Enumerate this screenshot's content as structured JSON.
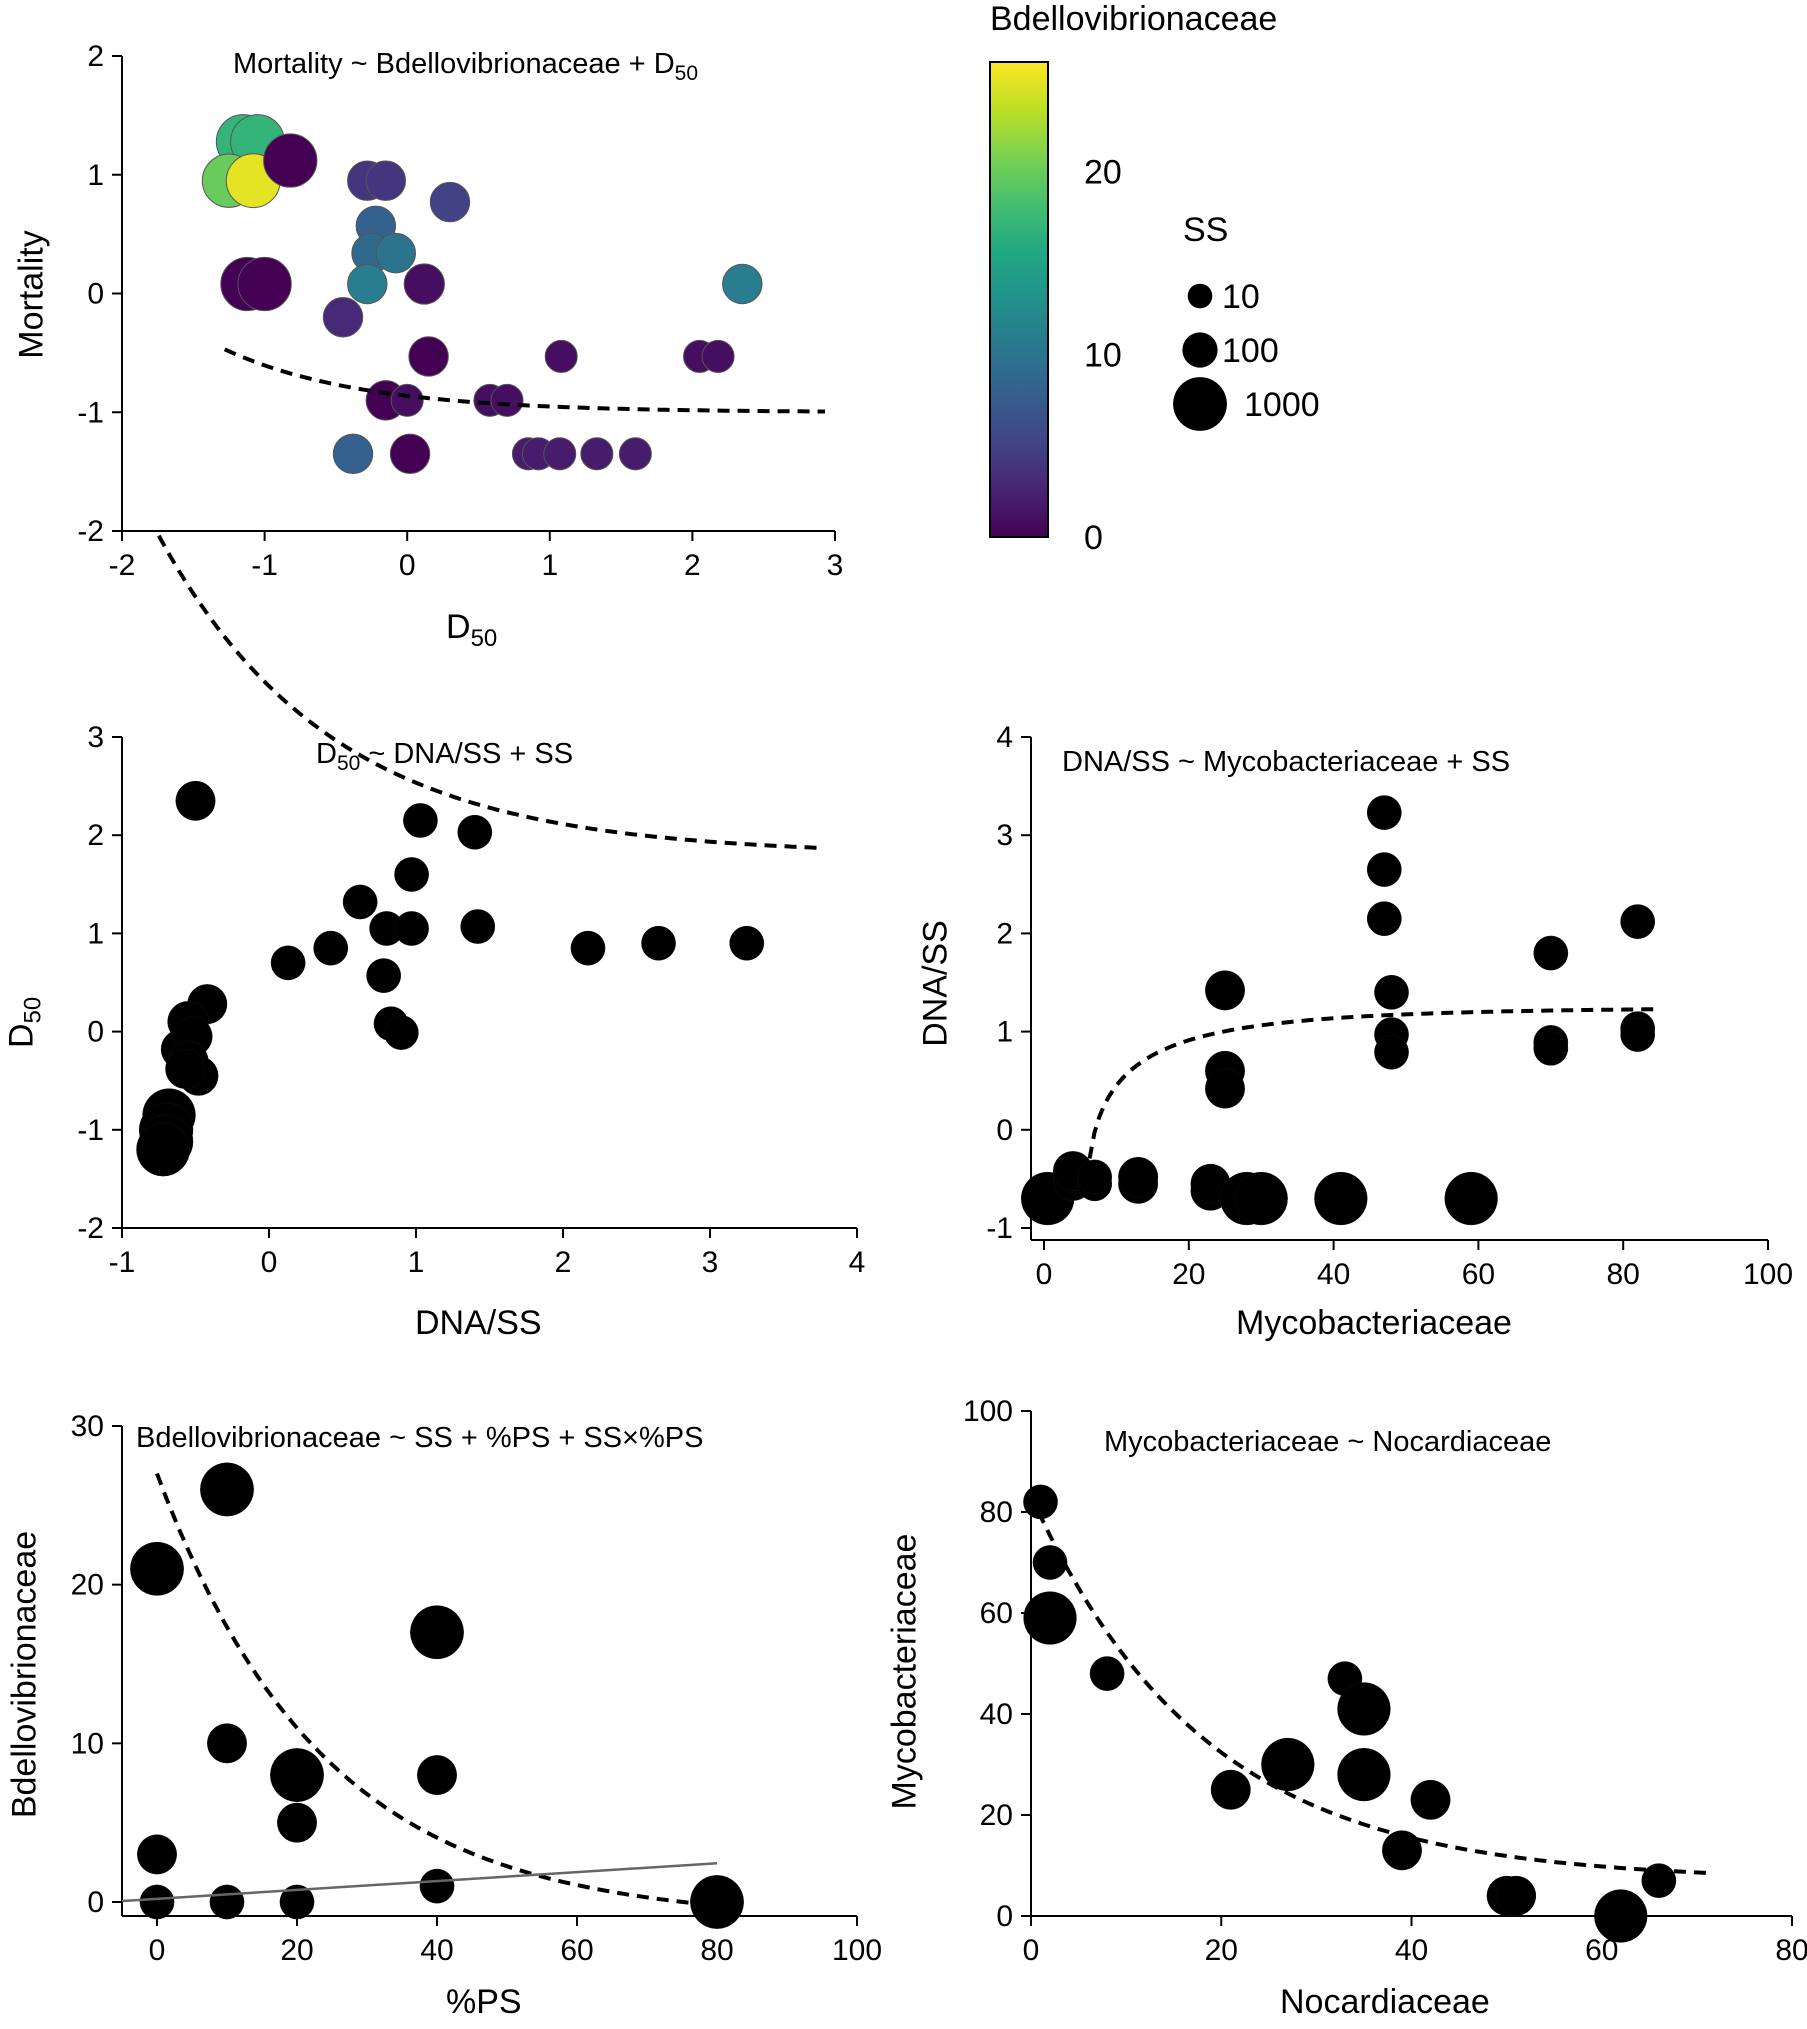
{
  "colors": {
    "viridis": [
      "#440154",
      "#482475",
      "#414487",
      "#355f8d",
      "#2a788e",
      "#21918c",
      "#22a884",
      "#44bf70",
      "#7ad151",
      "#bddf26",
      "#fde725"
    ],
    "ink": "#000000",
    "regression_line": "#666666"
  },
  "colorbar": {
    "title": "Bdellovibrionaceae",
    "tick_values": [
      0,
      10,
      20
    ],
    "tick_labels": [
      "0",
      "10",
      "20"
    ],
    "range": [
      0,
      26
    ]
  },
  "size_legend": {
    "title": "SS",
    "entries": [
      {
        "label": "10",
        "ss": 10
      },
      {
        "label": "100",
        "ss": 100
      },
      {
        "label": "1000",
        "ss": 1000
      }
    ]
  },
  "chart_data": [
    {
      "id": "p1",
      "type": "scatter",
      "title_main": "Mortality ~ Bdellovibrionaceae + D",
      "title_sub": "50",
      "xlabel_main": "D",
      "xlabel_sub": "50",
      "ylabel": "Mortality",
      "xlim": [
        -2,
        3
      ],
      "ylim": [
        -2,
        2
      ],
      "xticks": [
        -2,
        -1,
        0,
        1,
        2,
        3
      ],
      "yticks": [
        -2,
        -1,
        0,
        1,
        2
      ],
      "xtick_labels": [
        "-2",
        "-1",
        "0",
        "1",
        "2",
        "3"
      ],
      "ytick_labels": [
        "-2",
        "-1",
        "0",
        "1",
        "2"
      ],
      "color_by": "bdello",
      "points": [
        {
          "x": -1.15,
          "y": 1.28,
          "ss": 1000,
          "bdello": 17
        },
        {
          "x": -1.05,
          "y": 1.28,
          "ss": 1000,
          "bdello": 17
        },
        {
          "x": -1.25,
          "y": 0.95,
          "ss": 900,
          "bdello": 20
        },
        {
          "x": -1.08,
          "y": 0.95,
          "ss": 1000,
          "bdello": 25
        },
        {
          "x": -0.82,
          "y": 1.12,
          "ss": 900,
          "bdello": 0
        },
        {
          "x": -1.12,
          "y": 0.08,
          "ss": 900,
          "bdello": 0
        },
        {
          "x": -1.0,
          "y": 0.08,
          "ss": 900,
          "bdello": 0
        },
        {
          "x": -0.28,
          "y": 0.95,
          "ss": 250,
          "bdello": 4
        },
        {
          "x": -0.15,
          "y": 0.95,
          "ss": 250,
          "bdello": 4
        },
        {
          "x": 0.3,
          "y": 0.77,
          "ss": 250,
          "bdello": 5
        },
        {
          "x": -0.22,
          "y": 0.57,
          "ss": 250,
          "bdello": 8
        },
        {
          "x": -0.25,
          "y": 0.34,
          "ss": 250,
          "bdello": 9
        },
        {
          "x": -0.08,
          "y": 0.34,
          "ss": 250,
          "bdello": 10
        },
        {
          "x": -0.28,
          "y": 0.08,
          "ss": 250,
          "bdello": 11
        },
        {
          "x": 0.12,
          "y": 0.08,
          "ss": 300,
          "bdello": 1
        },
        {
          "x": 2.35,
          "y": 0.08,
          "ss": 250,
          "bdello": 11
        },
        {
          "x": -0.45,
          "y": -0.2,
          "ss": 250,
          "bdello": 3
        },
        {
          "x": 0.15,
          "y": -0.53,
          "ss": 250,
          "bdello": 0
        },
        {
          "x": 1.08,
          "y": -0.53,
          "ss": 50,
          "bdello": 1
        },
        {
          "x": 2.05,
          "y": -0.53,
          "ss": 50,
          "bdello": 1
        },
        {
          "x": 2.18,
          "y": -0.53,
          "ss": 50,
          "bdello": 1
        },
        {
          "x": -0.15,
          "y": -0.9,
          "ss": 250,
          "bdello": 0
        },
        {
          "x": 0.0,
          "y": -0.9,
          "ss": 50,
          "bdello": 1
        },
        {
          "x": 0.58,
          "y": -0.9,
          "ss": 50,
          "bdello": 1
        },
        {
          "x": 0.7,
          "y": -0.9,
          "ss": 50,
          "bdello": 1
        },
        {
          "x": -0.38,
          "y": -1.35,
          "ss": 250,
          "bdello": 8
        },
        {
          "x": 0.02,
          "y": -1.35,
          "ss": 250,
          "bdello": 0
        },
        {
          "x": 0.85,
          "y": -1.35,
          "ss": 50,
          "bdello": 2
        },
        {
          "x": 0.92,
          "y": -1.35,
          "ss": 50,
          "bdello": 2
        },
        {
          "x": 1.07,
          "y": -1.35,
          "ss": 50,
          "bdello": 2
        },
        {
          "x": 1.33,
          "y": -1.35,
          "ss": 50,
          "bdello": 2
        },
        {
          "x": 1.6,
          "y": -1.35,
          "ss": 50,
          "bdello": 2
        }
      ],
      "fit": {
        "form": "exp",
        "a": -1.0,
        "b": 0.53,
        "c": 1.05,
        "x_from": -1.28,
        "x_to": 2.93
      }
    },
    {
      "id": "p2",
      "type": "scatter",
      "title_main": "D",
      "title_sub": "50",
      "title_rest": " ~ DNA/SS + SS",
      "xlabel": "DNA/SS",
      "ylabel_main": "D",
      "ylabel_sub": "50",
      "xlim": [
        -1,
        4
      ],
      "ylim": [
        -2,
        3
      ],
      "xticks": [
        -1,
        0,
        1,
        2,
        3,
        4
      ],
      "yticks": [
        -2,
        -1,
        0,
        1,
        2,
        3
      ],
      "xtick_labels": [
        "-1",
        "0",
        "1",
        "2",
        "3",
        "4"
      ],
      "ytick_labels": [
        "-2",
        "-1",
        "0",
        "1",
        "2",
        "3"
      ],
      "points": [
        {
          "x": -0.5,
          "y": 2.35,
          "ss": 250
        },
        {
          "x": -0.42,
          "y": 0.28,
          "ss": 250
        },
        {
          "x": -0.55,
          "y": 0.1,
          "ss": 350
        },
        {
          "x": -0.6,
          "y": -0.18,
          "ss": 250
        },
        {
          "x": -0.52,
          "y": -0.05,
          "ss": 250
        },
        {
          "x": -0.55,
          "y": -0.3,
          "ss": 300
        },
        {
          "x": -0.48,
          "y": -0.45,
          "ss": 250
        },
        {
          "x": -0.57,
          "y": -0.38,
          "ss": 250
        },
        {
          "x": -0.68,
          "y": -0.85,
          "ss": 800
        },
        {
          "x": -0.7,
          "y": -1.0,
          "ss": 1000
        },
        {
          "x": -0.7,
          "y": -1.12,
          "ss": 1000
        },
        {
          "x": -0.72,
          "y": -1.2,
          "ss": 900
        },
        {
          "x": 0.13,
          "y": 0.7,
          "ss": 80
        },
        {
          "x": 0.42,
          "y": 0.85,
          "ss": 80
        },
        {
          "x": 0.62,
          "y": 1.32,
          "ss": 80
        },
        {
          "x": 0.8,
          "y": 1.05,
          "ss": 80
        },
        {
          "x": 0.97,
          "y": 1.05,
          "ss": 80
        },
        {
          "x": 0.97,
          "y": 1.6,
          "ss": 80
        },
        {
          "x": 1.03,
          "y": 2.15,
          "ss": 80
        },
        {
          "x": 1.4,
          "y": 2.03,
          "ss": 80
        },
        {
          "x": 1.42,
          "y": 1.07,
          "ss": 80
        },
        {
          "x": 0.78,
          "y": 0.57,
          "ss": 80
        },
        {
          "x": 0.83,
          "y": 0.08,
          "ss": 80
        },
        {
          "x": 0.9,
          "y": -0.01,
          "ss": 80
        },
        {
          "x": 2.17,
          "y": 0.85,
          "ss": 80
        },
        {
          "x": 2.65,
          "y": 0.9,
          "ss": 80
        },
        {
          "x": 3.25,
          "y": 0.9,
          "ss": 80
        }
      ],
      "fit": {
        "form": "exp",
        "a": 1.8,
        "b": 3.25,
        "c": 0.85,
        "x_from": -0.75,
        "x_to": 3.75
      }
    },
    {
      "id": "p3",
      "type": "scatter",
      "title_main": "DNA/SS ~ Mycobacteriaceae + SS",
      "xlabel": "Mycobacteriaceae",
      "ylabel": "DNA/SS",
      "xlim": [
        0,
        100
      ],
      "ylim": [
        -1,
        4
      ],
      "xticks": [
        0,
        20,
        40,
        60,
        80,
        100
      ],
      "yticks": [
        -1,
        0,
        1,
        2,
        3,
        4
      ],
      "xtick_labels": [
        "0",
        "20",
        "40",
        "60",
        "80",
        "100"
      ],
      "ytick_labels": [
        "-1",
        "0",
        "1",
        "2",
        "3",
        "4"
      ],
      "points": [
        {
          "x": 0.5,
          "y": -0.7,
          "ss": 800
        },
        {
          "x": 4,
          "y": -0.52,
          "ss": 250
        },
        {
          "x": 4,
          "y": -0.42,
          "ss": 250
        },
        {
          "x": 7,
          "y": -0.55,
          "ss": 80
        },
        {
          "x": 7,
          "y": -0.48,
          "ss": 80
        },
        {
          "x": 13,
          "y": -0.55,
          "ss": 250
        },
        {
          "x": 13,
          "y": -0.48,
          "ss": 250
        },
        {
          "x": 23,
          "y": -0.62,
          "ss": 250
        },
        {
          "x": 23,
          "y": -0.55,
          "ss": 250
        },
        {
          "x": 28,
          "y": -0.7,
          "ss": 800
        },
        {
          "x": 30,
          "y": -0.7,
          "ss": 800
        },
        {
          "x": 41,
          "y": -0.7,
          "ss": 800
        },
        {
          "x": 59,
          "y": -0.7,
          "ss": 800
        },
        {
          "x": 25,
          "y": 1.42,
          "ss": 250
        },
        {
          "x": 25,
          "y": 0.6,
          "ss": 250
        },
        {
          "x": 25,
          "y": 0.42,
          "ss": 250
        },
        {
          "x": 47,
          "y": 3.23,
          "ss": 80
        },
        {
          "x": 47,
          "y": 2.65,
          "ss": 80
        },
        {
          "x": 47,
          "y": 2.15,
          "ss": 80
        },
        {
          "x": 48,
          "y": 1.4,
          "ss": 80
        },
        {
          "x": 48,
          "y": 0.97,
          "ss": 80
        },
        {
          "x": 48,
          "y": 0.79,
          "ss": 80
        },
        {
          "x": 70,
          "y": 1.8,
          "ss": 80
        },
        {
          "x": 70,
          "y": 0.89,
          "ss": 80
        },
        {
          "x": 70,
          "y": 0.83,
          "ss": 80
        },
        {
          "x": 82,
          "y": 2.12,
          "ss": 80
        },
        {
          "x": 82,
          "y": 1.03,
          "ss": 80
        },
        {
          "x": 82,
          "y": 0.97,
          "ss": 80
        }
      ],
      "fit": {
        "form": "log",
        "A": 1.9,
        "B": 2.8,
        "C": 1.25,
        "x0": 6.0,
        "x_from": 6.3,
        "x_to": 85
      }
    },
    {
      "id": "p4",
      "type": "scatter",
      "title_main": "Bdellovibrionaceae ~ SS + %PS + SS×%PS",
      "xlabel": "%PS",
      "ylabel": "Bdellovibrionaceae",
      "xlim": [
        0,
        100
      ],
      "ylim": [
        0,
        30
      ],
      "xticks": [
        0,
        20,
        40,
        60,
        80,
        100
      ],
      "yticks": [
        0,
        10,
        20,
        30
      ],
      "xtick_labels": [
        "0",
        "20",
        "40",
        "60",
        "80",
        "100"
      ],
      "ytick_labels": [
        "0",
        "10",
        "20",
        "30"
      ],
      "points": [
        {
          "x": 0,
          "y": 21,
          "ss": 900
        },
        {
          "x": 10,
          "y": 26,
          "ss": 900
        },
        {
          "x": 40,
          "y": 17,
          "ss": 900
        },
        {
          "x": 20,
          "y": 8,
          "ss": 900
        },
        {
          "x": 80,
          "y": 0,
          "ss": 900
        },
        {
          "x": 10,
          "y": 10,
          "ss": 250
        },
        {
          "x": 40,
          "y": 8,
          "ss": 250
        },
        {
          "x": 20,
          "y": 5,
          "ss": 250
        },
        {
          "x": 0,
          "y": 3,
          "ss": 250
        },
        {
          "x": 0,
          "y": 0,
          "ss": 80
        },
        {
          "x": 10,
          "y": 0,
          "ss": 80
        },
        {
          "x": 20,
          "y": 0,
          "ss": 80
        },
        {
          "x": 40,
          "y": 1,
          "ss": 80
        }
      ],
      "fit": {
        "form": "exp",
        "a": -1.2,
        "b": 28.2,
        "c": 0.042,
        "x_from": 0,
        "x_to": 80
      },
      "line": {
        "x_from": -5,
        "x_to": 80,
        "slope": 0.028,
        "intercept": 0.2
      }
    },
    {
      "id": "p5",
      "type": "scatter",
      "title_main": "Mycobacteriaceae ~ Nocardiaceae",
      "xlabel": "Nocardiaceae",
      "ylabel": "Mycobacteriaceae",
      "xlim": [
        0,
        80
      ],
      "ylim": [
        0,
        100
      ],
      "xticks": [
        0,
        20,
        40,
        60,
        80
      ],
      "yticks": [
        0,
        20,
        40,
        60,
        80,
        100
      ],
      "xtick_labels": [
        "0",
        "20",
        "40",
        "60",
        "80"
      ],
      "ytick_labels": [
        "0",
        "20",
        "40",
        "60",
        "80",
        "100"
      ],
      "points": [
        {
          "x": 1,
          "y": 82,
          "ss": 80
        },
        {
          "x": 2,
          "y": 70,
          "ss": 80
        },
        {
          "x": 2,
          "y": 59,
          "ss": 800
        },
        {
          "x": 8,
          "y": 48,
          "ss": 80
        },
        {
          "x": 21,
          "y": 25,
          "ss": 250
        },
        {
          "x": 27,
          "y": 30,
          "ss": 800
        },
        {
          "x": 33,
          "y": 47,
          "ss": 80
        },
        {
          "x": 35,
          "y": 41,
          "ss": 800
        },
        {
          "x": 35,
          "y": 28,
          "ss": 800
        },
        {
          "x": 39,
          "y": 13,
          "ss": 250
        },
        {
          "x": 42,
          "y": 23,
          "ss": 250
        },
        {
          "x": 50,
          "y": 4,
          "ss": 250
        },
        {
          "x": 51,
          "y": 4,
          "ss": 250
        },
        {
          "x": 62,
          "y": 0,
          "ss": 800
        },
        {
          "x": 66,
          "y": 7,
          "ss": 80
        }
      ],
      "fit": {
        "form": "exp",
        "a": 7.0,
        "b": 73.0,
        "c": 0.055,
        "x_from": 0.8,
        "x_to": 71
      }
    }
  ]
}
